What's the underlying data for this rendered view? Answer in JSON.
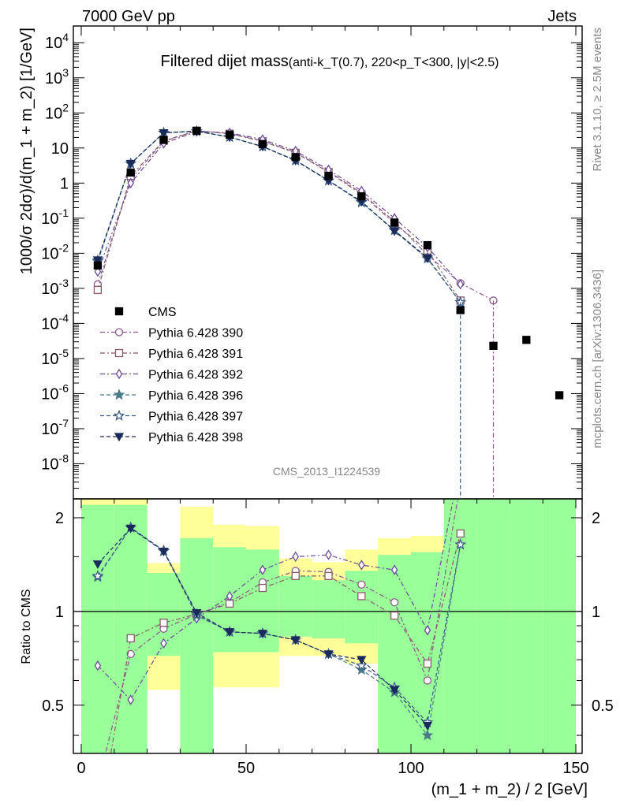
{
  "header": {
    "left": "7000 GeV pp",
    "right": "Jets"
  },
  "chart_data": {
    "type": "scatter",
    "title": "Filtered dijet mass",
    "subtitle": "(anti-k_T(0.7), 220<p_T<300, |y|<2.5)",
    "xlabel": "(m_1 + m_2) / 2 [GeV]",
    "ylabel": "1000/σ 2dσ)/d(m_1 + m_2) [1/GeV]",
    "ratio_ylabel": "Ratio to CMS",
    "analysis_label": "CMS_2013_I1224539",
    "side_label_rivet": "Rivet 3.1.10, ≥ 2.5M events",
    "side_label_mcplots": "mcplots.cern.ch [arXiv:1306.3436]",
    "xlim": [
      0,
      150
    ],
    "ylim": [
      1e-09,
      30000.0
    ],
    "ratio_ylim": [
      0.35,
      2.3
    ],
    "log_y": true,
    "legend_position": "middle-left",
    "x_ticks": [
      "0",
      "50",
      "100",
      "150"
    ],
    "y_ticks": [
      "10^-8",
      "10^-7",
      "10^-6",
      "10^-5",
      "10^-4",
      "10^-3",
      "10^-2",
      "10^-1",
      "1",
      "10",
      "10^2",
      "10^3",
      "10^4"
    ],
    "ratio_ticks": [
      "0.5",
      "1",
      "2"
    ],
    "x": [
      5,
      15,
      25,
      35,
      45,
      55,
      65,
      75,
      85,
      95,
      105,
      115,
      125,
      135,
      145
    ],
    "data": {
      "name": "CMS",
      "values": [
        0.0045,
        2.0,
        17,
        31,
        24,
        13,
        5.5,
        1.6,
        0.42,
        0.075,
        0.017,
        0.00024,
        2.3e-05,
        3.4e-05,
        9e-07
      ]
    },
    "series": [
      {
        "name": "Pythia 6.428 390",
        "marker": "circle-open",
        "color": "#8a5a8a",
        "values": [
          0.0013,
          1.3,
          15.5,
          31,
          26,
          16,
          7.5,
          2.15,
          0.52,
          0.08,
          0.009,
          0.0014,
          0.00045
        ]
      },
      {
        "name": "Pythia 6.428 391",
        "marker": "square-open",
        "color": "#8a5a6a",
        "values": [
          0.0009,
          1.6,
          16,
          31,
          25.5,
          15.5,
          7.3,
          2.05,
          0.48,
          0.072,
          0.012,
          0.00045,
          null
        ]
      },
      {
        "name": "Pythia 6.428 392",
        "marker": "diamond-open",
        "color": "#6a4a9a",
        "values": [
          0.003,
          1.0,
          13.5,
          29.5,
          27,
          17.5,
          8.2,
          2.4,
          0.6,
          0.1,
          0.015,
          0.0013,
          null
        ]
      },
      {
        "name": "Pythia 6.428 396",
        "marker": "star-filled",
        "color": "#4a7a8a",
        "values": [
          0.0058,
          3.6,
          27,
          30,
          20.5,
          11,
          4.5,
          1.18,
          0.28,
          0.045,
          0.007,
          0.0004,
          null
        ]
      },
      {
        "name": "Pythia 6.428 397",
        "marker": "star-open",
        "color": "#3a5a8a",
        "values": [
          0.0063,
          3.6,
          27,
          30,
          20.5,
          11,
          4.4,
          1.17,
          0.29,
          0.045,
          0.0075,
          0.0004,
          null
        ]
      },
      {
        "name": "Pythia 6.428 398",
        "marker": "triangle-down-filled",
        "color": "#1a2a5a",
        "values": [
          0.0064,
          3.6,
          27,
          30.5,
          20.5,
          11,
          4.4,
          1.18,
          0.3,
          0.043,
          0.0072,
          null,
          null
        ]
      }
    ],
    "ratio_series": [
      {
        "name": "Pythia 6.428 390",
        "values": [
          0.28,
          0.73,
          0.88,
          0.98,
          1.07,
          1.24,
          1.35,
          1.34,
          1.22,
          1.07,
          0.6,
          2.6,
          null
        ]
      },
      {
        "name": "Pythia 6.428 391",
        "values": [
          0.2,
          0.82,
          0.92,
          0.98,
          1.06,
          1.19,
          1.3,
          1.3,
          1.12,
          0.97,
          0.68,
          1.78,
          null
        ]
      },
      {
        "name": "Pythia 6.428 392",
        "values": [
          0.67,
          0.52,
          0.79,
          0.95,
          1.12,
          1.36,
          1.5,
          1.52,
          1.41,
          1.36,
          0.87,
          3.0,
          null
        ]
      },
      {
        "name": "Pythia 6.428 396",
        "values": [
          1.29,
          1.86,
          1.56,
          0.97,
          0.86,
          0.85,
          0.81,
          0.73,
          0.65,
          0.55,
          0.4,
          1.64,
          null
        ]
      },
      {
        "name": "Pythia 6.428 397",
        "values": [
          1.3,
          1.86,
          1.57,
          0.98,
          0.86,
          0.85,
          0.81,
          0.73,
          0.67,
          0.57,
          0.44,
          1.64,
          null
        ]
      },
      {
        "name": "Pythia 6.428 398",
        "values": [
          1.42,
          1.85,
          1.56,
          0.99,
          0.86,
          0.85,
          0.81,
          0.73,
          0.7,
          0.56,
          0.43,
          null,
          null
        ]
      }
    ],
    "uncertainty_bands": {
      "x_edges": [
        0,
        10,
        20,
        30,
        40,
        50,
        60,
        70,
        80,
        90,
        100,
        110,
        120,
        130,
        140,
        150
      ],
      "yellow_low": [
        0.3,
        0.3,
        0.56,
        0.3,
        0.57,
        0.57,
        0.72,
        0.72,
        0.68,
        0.3,
        0.3,
        0.3,
        0.37,
        0.38,
        0.3
      ],
      "yellow_high": [
        2.3,
        2.3,
        1.43,
        2.17,
        1.9,
        1.88,
        1.48,
        1.44,
        1.58,
        1.72,
        1.75,
        2.3,
        2.3,
        2.0,
        2.3
      ],
      "green_low": [
        0.3,
        0.3,
        0.72,
        0.3,
        0.74,
        0.74,
        0.83,
        0.82,
        0.79,
        0.3,
        0.3,
        0.3,
        0.3,
        0.3,
        0.3
      ],
      "green_high": [
        2.2,
        2.2,
        1.33,
        1.72,
        1.61,
        1.58,
        1.3,
        1.26,
        1.35,
        1.52,
        1.55,
        2.3,
        2.3,
        2.3,
        2.3
      ],
      "yellow_color": "#ffff99",
      "green_color": "#99ff99"
    }
  }
}
